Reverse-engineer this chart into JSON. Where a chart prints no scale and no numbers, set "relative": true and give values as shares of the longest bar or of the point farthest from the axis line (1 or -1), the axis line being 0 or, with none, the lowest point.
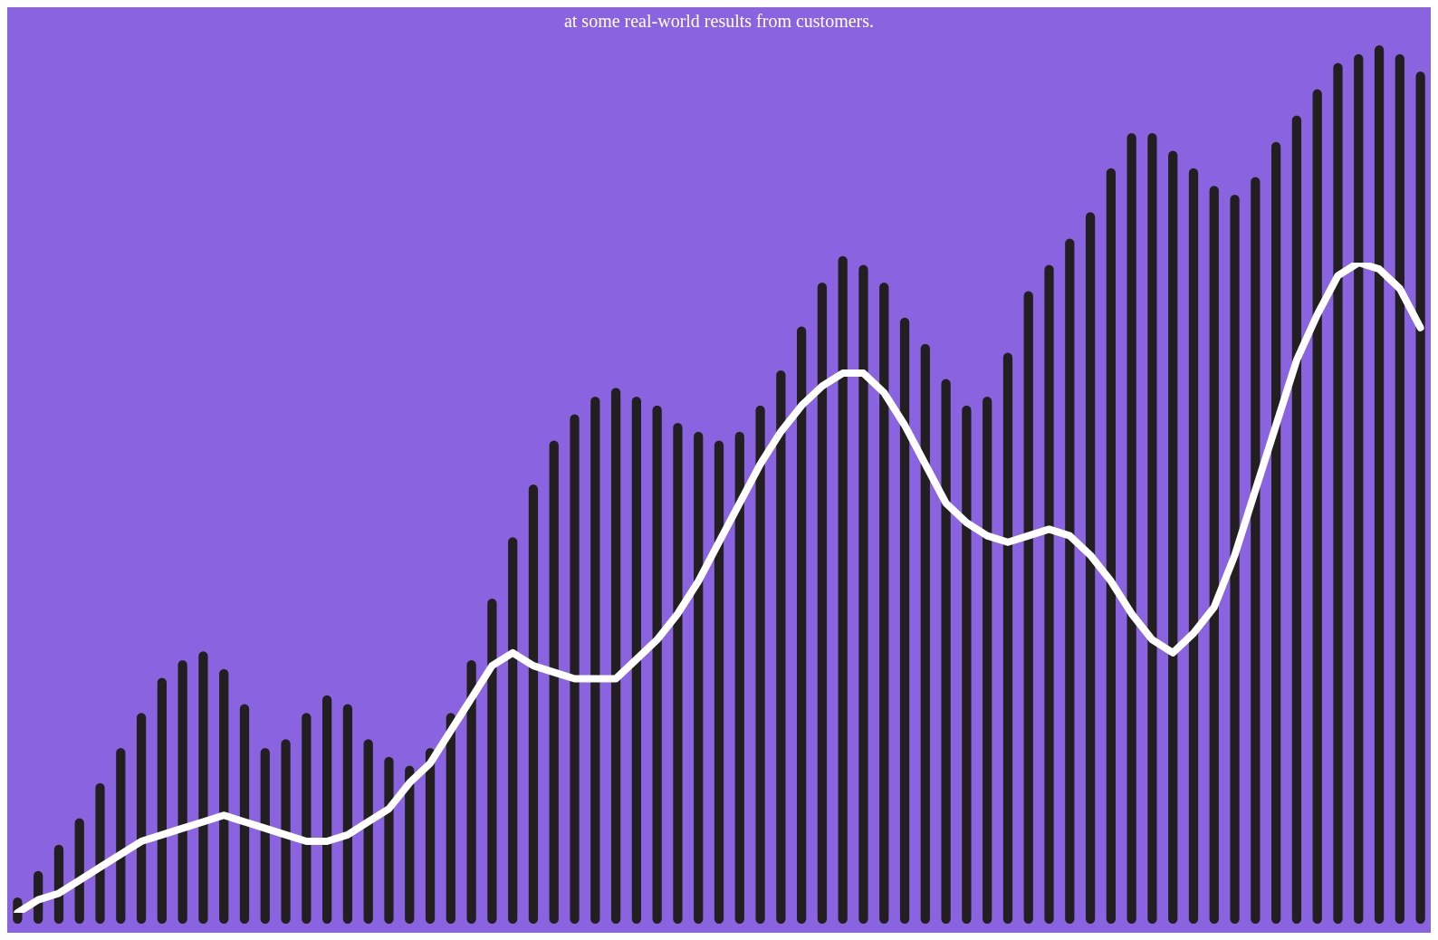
{
  "chart_data": [
    {
      "type": "bar",
      "subtitle": "at some real-world results from customers.",
      "relative": true,
      "grid": false,
      "legend": false,
      "categories": [
        null,
        null,
        null,
        null,
        null,
        null,
        null,
        null,
        null,
        null,
        null,
        null,
        null,
        null,
        null,
        null,
        null,
        null,
        null,
        null,
        null,
        null,
        null,
        null,
        null,
        null,
        null,
        null,
        null,
        null,
        null,
        null,
        null,
        null,
        null,
        null,
        null,
        null,
        null,
        null,
        null,
        null,
        null,
        null,
        null,
        null,
        null,
        null,
        null,
        null,
        null,
        null,
        null,
        null,
        null,
        null,
        null,
        null,
        null,
        null,
        null,
        null,
        null,
        null,
        null,
        null,
        null,
        null,
        null
      ],
      "series": [
        {
          "color": "#231f20",
          "values": [
            0.03,
            0.06,
            0.09,
            0.12,
            0.16,
            0.2,
            0.24,
            0.28,
            0.3,
            0.31,
            0.29,
            0.25,
            0.2,
            0.21,
            0.24,
            0.26,
            0.25,
            0.21,
            0.19,
            0.18,
            0.2,
            0.24,
            0.3,
            0.37,
            0.44,
            0.5,
            0.55,
            0.58,
            0.6,
            0.61,
            0.6,
            0.59,
            0.57,
            0.56,
            0.55,
            0.56,
            0.59,
            0.63,
            0.68,
            0.73,
            0.76,
            0.75,
            0.73,
            0.69,
            0.66,
            0.62,
            0.59,
            0.6,
            0.65,
            0.72,
            0.75,
            0.78,
            0.81,
            0.86,
            0.9,
            0.9,
            0.88,
            0.86,
            0.84,
            0.83,
            0.85,
            0.89,
            0.92,
            0.95,
            0.98,
            0.99,
            1,
            0.99,
            0.97
          ]
        }
      ]
    },
    {
      "type": "line",
      "relative": true,
      "grid": false,
      "legend": false,
      "marker": "none",
      "categories": [
        null,
        null,
        null,
        null,
        null,
        null,
        null,
        null,
        null,
        null,
        null,
        null,
        null,
        null,
        null,
        null,
        null,
        null,
        null,
        null,
        null,
        null,
        null,
        null,
        null,
        null,
        null,
        null,
        null,
        null,
        null,
        null,
        null,
        null,
        null,
        null,
        null,
        null,
        null,
        null,
        null,
        null,
        null,
        null,
        null,
        null,
        null,
        null,
        null,
        null,
        null,
        null,
        null,
        null,
        null,
        null,
        null,
        null,
        null,
        null,
        null,
        null,
        null,
        null,
        null,
        null,
        null,
        null,
        null
      ],
      "series": [
        {
          "color": "#ffffff",
          "values": [
            0,
            0.02,
            0.03,
            0.05,
            0.07,
            0.09,
            0.11,
            0.12,
            0.13,
            0.14,
            0.15,
            0.14,
            0.13,
            0.12,
            0.11,
            0.11,
            0.12,
            0.14,
            0.16,
            0.2,
            0.23,
            0.28,
            0.33,
            0.38,
            0.4,
            0.38,
            0.37,
            0.36,
            0.36,
            0.36,
            0.39,
            0.42,
            0.46,
            0.51,
            0.57,
            0.63,
            0.69,
            0.74,
            0.78,
            0.81,
            0.83,
            0.83,
            0.8,
            0.75,
            0.69,
            0.63,
            0.6,
            0.58,
            0.57,
            0.58,
            0.59,
            0.58,
            0.55,
            0.51,
            0.46,
            0.42,
            0.4,
            0.43,
            0.47,
            0.55,
            0.65,
            0.75,
            0.85,
            0.92,
            0.98,
            1,
            0.99,
            0.96,
            0.9
          ]
        }
      ]
    }
  ]
}
